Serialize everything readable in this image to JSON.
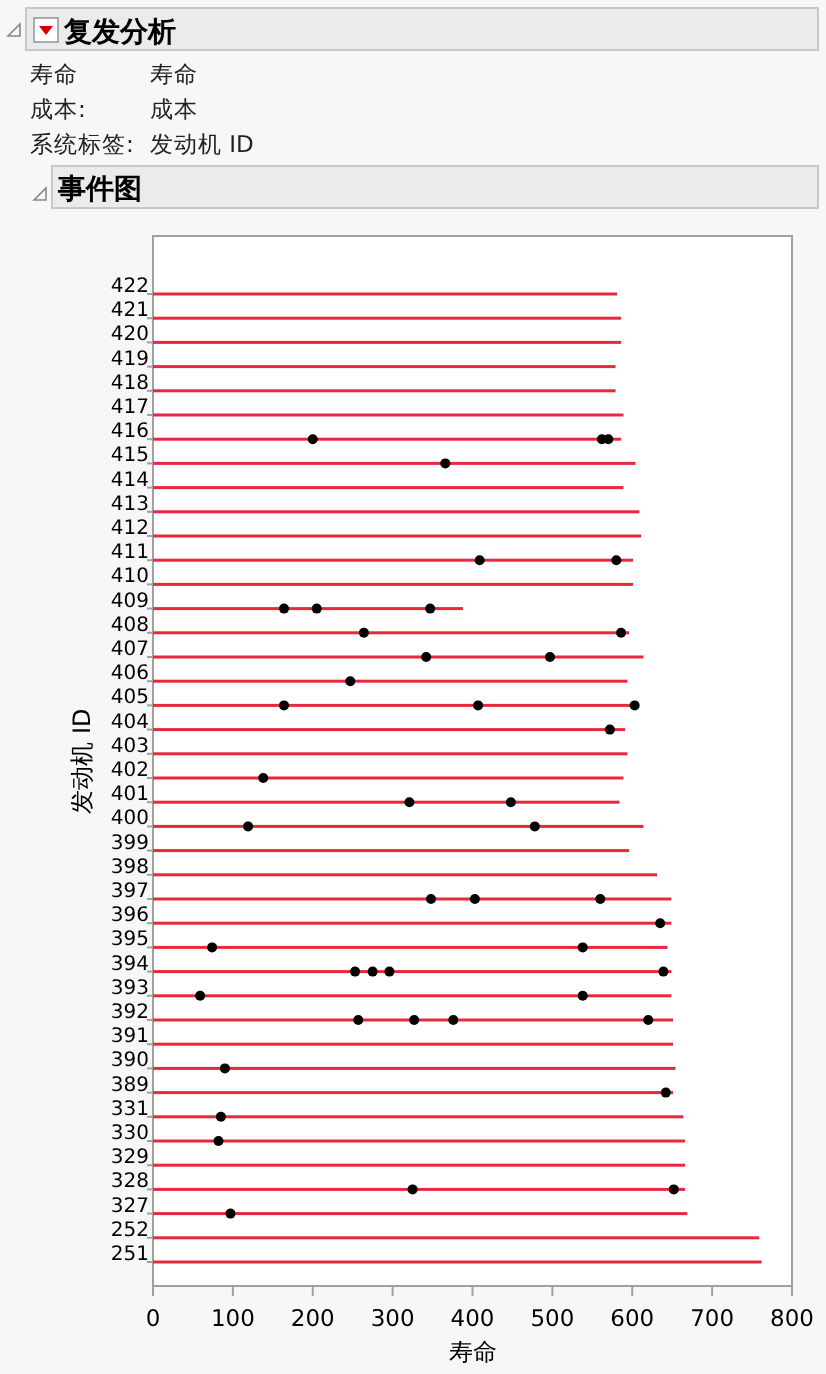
{
  "chart_data": {
    "type": "bar",
    "orientation": "horizontal",
    "title": "复发分析",
    "subtitle": "事件图",
    "annotations": [
      "寿命",
      "寿命",
      "成本:",
      "成本",
      "系统标签:",
      "发动机 ID"
    ],
    "xlabel": "寿命",
    "ylabel": "发动机 ID",
    "categories": [
      "422",
      "421",
      "420",
      "419",
      "418",
      "417",
      "416",
      "415",
      "414",
      "413",
      "412",
      "411",
      "410",
      "409",
      "408",
      "407",
      "406",
      "405",
      "404",
      "403",
      "402",
      "401",
      "400",
      "399",
      "398",
      "397",
      "396",
      "395",
      "394",
      "393",
      "392",
      "391",
      "390",
      "389",
      "331",
      "330",
      "329",
      "328",
      "327",
      "252",
      "251"
    ],
    "xlim": [
      0,
      800
    ],
    "xticks": [
      0,
      100,
      200,
      300,
      400,
      500,
      600,
      700,
      800
    ],
    "grid": false,
    "marker": "circle",
    "series": [
      {
        "color": "#e8283c",
        "values": [
          581,
          586,
          586,
          579,
          579,
          589,
          586,
          604,
          589,
          609,
          611,
          601,
          601,
          388,
          596,
          614,
          594,
          603,
          591,
          594,
          589,
          584,
          614,
          596,
          631,
          649,
          649,
          644,
          649,
          649,
          651,
          651,
          654,
          651,
          664,
          666,
          666,
          666,
          669,
          759,
          762
        ]
      },
      {
        "type": "scatter",
        "color": "#000000",
        "x": [
          "416",
          "416",
          "416",
          "415",
          "411",
          "411",
          "409",
          "409",
          "409",
          "408",
          "408",
          "407",
          "407",
          "406",
          "405",
          "405",
          "405",
          "404",
          "402",
          "401",
          "401",
          "400",
          "400",
          "397",
          "397",
          "397",
          "396",
          "395",
          "395",
          "394",
          "394",
          "394",
          "394",
          "393",
          "393",
          "392",
          "392",
          "392",
          "392",
          "390",
          "389",
          "331",
          "330",
          "328",
          "328",
          "327"
        ],
        "values": [
          200,
          562,
          570,
          366,
          409,
          580,
          164,
          205,
          347,
          264,
          586,
          342,
          497,
          247,
          164,
          407,
          603,
          572,
          138,
          321,
          448,
          119,
          478,
          348,
          403,
          560,
          635,
          74,
          538,
          253,
          275,
          296,
          639,
          59,
          538,
          257,
          327,
          376,
          620,
          90,
          642,
          85,
          82,
          325,
          652,
          97
        ]
      }
    ]
  }
}
